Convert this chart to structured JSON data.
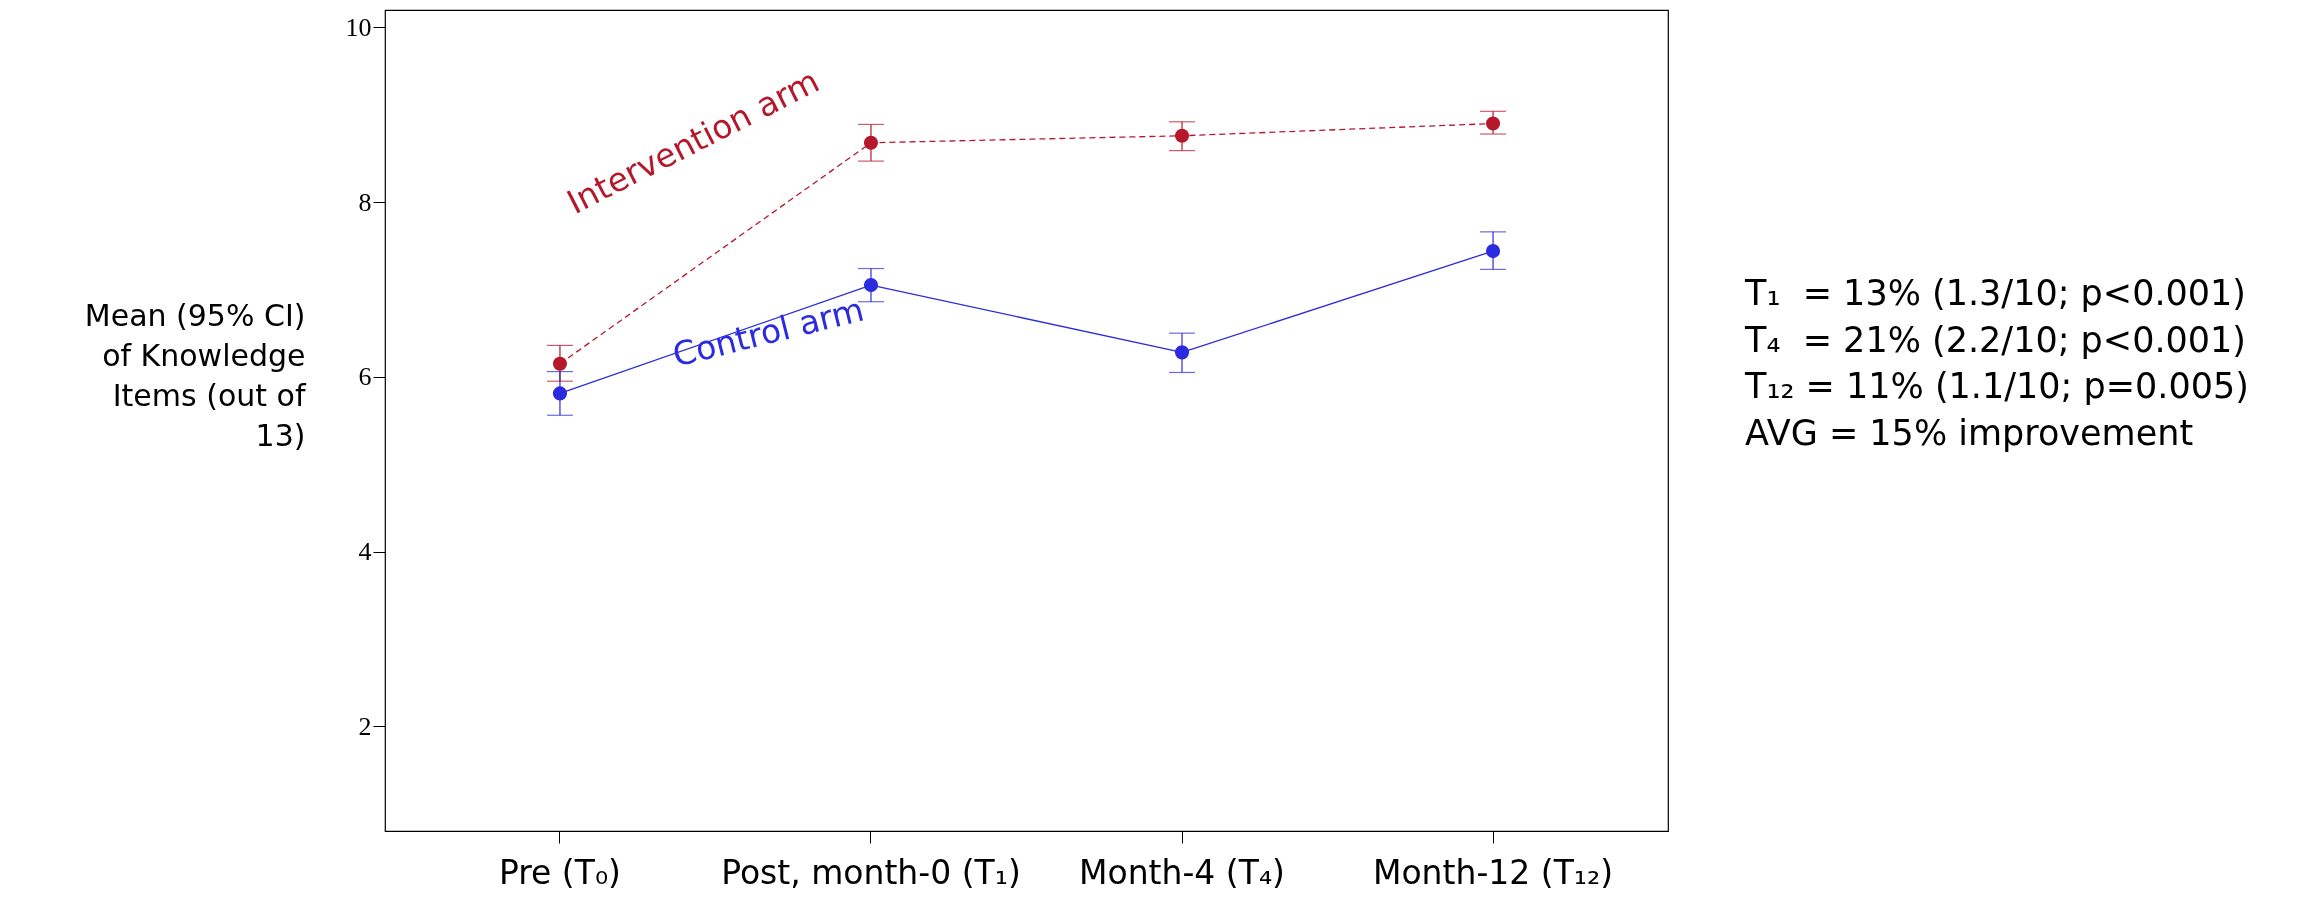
{
  "chart_data": {
    "type": "line",
    "ylabel": "Mean (95% CI) of Knowledge Items (out of 13)",
    "categories": [
      "Pre (T₀)",
      "Post, month-0 (T₁)",
      "Month-4 (T₄)",
      "Month-12 (T₁₂)"
    ],
    "series": [
      {
        "name": "Intervention arm",
        "color": "#b5182b",
        "line_style": "dashed",
        "values": [
          6.15,
          8.68,
          8.76,
          8.9
        ],
        "errors": [
          [
            5.95,
            6.36
          ],
          [
            8.47,
            8.89
          ],
          [
            8.59,
            8.92
          ],
          [
            8.78,
            9.04
          ]
        ]
      },
      {
        "name": "Control arm",
        "color": "#2b2bdf",
        "line_style": "solid",
        "values": [
          5.81,
          7.05,
          6.28,
          7.44
        ],
        "errors": [
          [
            5.56,
            6.06
          ],
          [
            6.86,
            7.24
          ],
          [
            6.05,
            6.5
          ],
          [
            7.23,
            7.66
          ]
        ]
      }
    ],
    "ylim": [
      0.8,
      10.2
    ],
    "yticks": [
      2,
      4,
      6,
      8,
      10
    ],
    "grid": false,
    "marker": "circle",
    "annotations": [
      "T₁  = 13% (1.3/10; p<0.001)",
      "T₄  = 21% (2.2/10; p<0.001)",
      "T₁₂ = 11% (1.1/10; p=0.005)",
      "AVG = 15% improvement"
    ]
  }
}
